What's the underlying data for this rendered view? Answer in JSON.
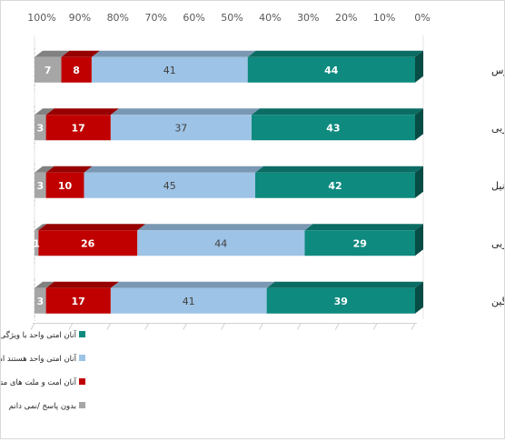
{
  "chart_data": {
    "type": "bar",
    "orientation": "horizontal-stacked-100-percent",
    "direction": "right-to-left",
    "categories": [
      "خلیج فارس",
      "مغرب عربی",
      "وادی نیل",
      "مشرق عربی",
      "میانگین"
    ],
    "series": [
      {
        "name": "آنان امتی واحد با ویژگی های واحد هستند که فقط مرزهای ساختگی بین آنها جدایی می اندازند",
        "color": "#0e8a7f",
        "values": [
          44,
          43,
          42,
          29,
          39
        ]
      },
      {
        "name": "آنان امتی واحد هستند اما هر ملتی دارای ویژگی های خاص خود می باشند",
        "color": "#9dc3e6",
        "values": [
          41,
          37,
          45,
          44,
          41
        ]
      },
      {
        "name": "آنان امت و ملت های متفاوتی هستند که جز روابط ضعیف با یکدیگر ارتباط دیگری ندارند",
        "color": "#c00000",
        "values": [
          8,
          17,
          10,
          26,
          17
        ]
      },
      {
        "name": "بدون پاسخ /نمی دانم",
        "color": "#a6a6a6",
        "values": [
          7,
          3,
          3,
          1,
          3
        ]
      }
    ],
    "xaxis": {
      "ticks": [
        "0%",
        "10%",
        "20%",
        "30%",
        "40%",
        "50%",
        "60%",
        "70%",
        "80%",
        "90%",
        "100%"
      ],
      "range": [
        0,
        100
      ],
      "reversed": true,
      "position": "top"
    },
    "legend": {
      "position": "bottom"
    },
    "grid": false
  }
}
